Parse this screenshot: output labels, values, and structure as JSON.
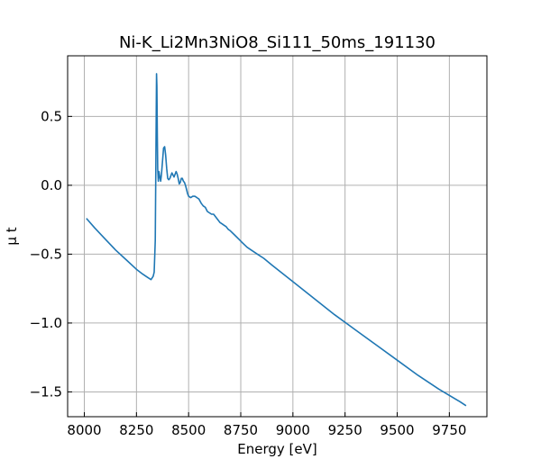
{
  "chart_data": {
    "type": "line",
    "title": "Ni-K_Li2Mn3NiO8_Si111_50ms_191130",
    "xlabel": "Energy [eV]",
    "ylabel": "μ t",
    "xlim": [
      7920,
      9930
    ],
    "ylim": [
      -1.68,
      0.94
    ],
    "xticks": [
      8000,
      8250,
      8500,
      8750,
      9000,
      9250,
      9500,
      9750
    ],
    "xtick_labels": [
      "8000",
      "8250",
      "8500",
      "8750",
      "9000",
      "9250",
      "9500",
      "9750"
    ],
    "yticks": [
      -1.5,
      -1.0,
      -0.5,
      0.0,
      0.5
    ],
    "ytick_labels": [
      "−1.5",
      "−1.0",
      "−0.5",
      "0.0",
      "0.5"
    ],
    "grid": true,
    "color": "#1f77b4",
    "series": [
      {
        "x": [
          8010,
          8050,
          8100,
          8150,
          8200,
          8250,
          8280,
          8300,
          8320,
          8330,
          8335,
          8340,
          8343,
          8346,
          8348,
          8350,
          8352,
          8355,
          8358,
          8362,
          8366,
          8370,
          8375,
          8380,
          8385,
          8390,
          8395,
          8400,
          8405,
          8410,
          8415,
          8420,
          8430,
          8440,
          8445,
          8450,
          8455,
          8460,
          8465,
          8470,
          8475,
          8480,
          8485,
          8490,
          8495,
          8500,
          8510,
          8520,
          8530,
          8540,
          8550,
          8560,
          8570,
          8580,
          8590,
          8600,
          8610,
          8620,
          8630,
          8640,
          8650,
          8660,
          8670,
          8680,
          8690,
          8700,
          8720,
          8740,
          8760,
          8780,
          8800,
          8830,
          8860,
          8900,
          9000,
          9100,
          9200,
          9300,
          9400,
          9500,
          9600,
          9700,
          9800,
          9830
        ],
        "y": [
          -0.24,
          -0.31,
          -0.39,
          -0.47,
          -0.54,
          -0.61,
          -0.645,
          -0.665,
          -0.685,
          -0.66,
          -0.63,
          -0.4,
          0.2,
          0.81,
          0.72,
          0.35,
          0.12,
          0.03,
          0.1,
          0.06,
          0.03,
          0.08,
          0.18,
          0.27,
          0.28,
          0.22,
          0.12,
          0.05,
          0.04,
          0.05,
          0.07,
          0.09,
          0.06,
          0.1,
          0.08,
          0.05,
          0.01,
          0.02,
          0.05,
          0.05,
          0.03,
          0.02,
          0.0,
          -0.03,
          -0.06,
          -0.08,
          -0.09,
          -0.08,
          -0.08,
          -0.09,
          -0.1,
          -0.13,
          -0.15,
          -0.16,
          -0.19,
          -0.2,
          -0.21,
          -0.21,
          -0.23,
          -0.25,
          -0.27,
          -0.28,
          -0.29,
          -0.3,
          -0.32,
          -0.33,
          -0.36,
          -0.39,
          -0.42,
          -0.45,
          -0.47,
          -0.5,
          -0.53,
          -0.58,
          -0.7,
          -0.82,
          -0.94,
          -1.05,
          -1.16,
          -1.27,
          -1.38,
          -1.48,
          -1.57,
          -1.6
        ]
      }
    ]
  }
}
